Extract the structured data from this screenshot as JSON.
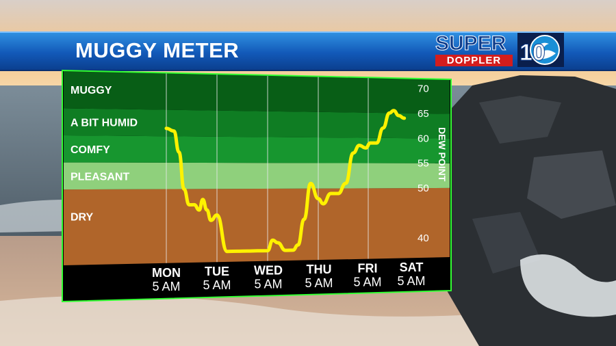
{
  "header": {
    "title": "MUGGY METER"
  },
  "logo": {
    "word1": "SUPER",
    "word2": "DOPPLER",
    "number": "10"
  },
  "chart_data": {
    "type": "line",
    "title": "MUGGY METER",
    "ylabel": "DEW POINT",
    "ylim": [
      36,
      72
    ],
    "yticks": [
      40,
      50,
      55,
      60,
      65,
      70
    ],
    "bands": [
      {
        "label": "DRY",
        "from": 36,
        "to": 50,
        "color": "#b0652a"
      },
      {
        "label": "PLEASANT",
        "from": 50,
        "to": 55,
        "color": "#8fd07c"
      },
      {
        "label": "COMFY",
        "from": 55,
        "to": 60,
        "color": "#17962f"
      },
      {
        "label": "A BIT HUMID",
        "from": 60,
        "to": 65,
        "color": "#0f7d23"
      },
      {
        "label": "MUGGY",
        "from": 65,
        "to": 72,
        "color": "#085e16"
      }
    ],
    "categories": [
      {
        "day": "MON",
        "time": "5 AM"
      },
      {
        "day": "TUE",
        "time": "5 AM"
      },
      {
        "day": "WED",
        "time": "5 AM"
      },
      {
        "day": "THU",
        "time": "5 AM"
      },
      {
        "day": "FRI",
        "time": "5 AM"
      },
      {
        "day": "SAT",
        "time": "5 AM"
      }
    ],
    "series": [
      {
        "color": "#fff200",
        "x": [
          0,
          0.15,
          0.25,
          0.35,
          0.45,
          0.55,
          0.65,
          0.72,
          0.8,
          0.88,
          1.0,
          1.2,
          1.4,
          1.6,
          1.8,
          2.0,
          2.1,
          2.2,
          2.35,
          2.5,
          2.6,
          2.72,
          2.85,
          3.0,
          3.1,
          3.25,
          3.4,
          3.55,
          3.7,
          3.82,
          3.95,
          4.05,
          4.2,
          4.35,
          4.5,
          4.6,
          4.72,
          4.85
        ],
        "values": [
          61.5,
          61,
          57,
          50,
          47,
          47,
          46,
          48,
          46,
          44,
          45,
          38,
          38,
          38,
          38,
          38,
          40,
          39.5,
          38,
          38,
          39,
          44,
          51,
          48,
          47,
          49,
          49,
          51,
          57,
          58.5,
          58,
          59,
          59,
          62,
          65,
          65.5,
          64.5,
          64
        ]
      }
    ]
  }
}
